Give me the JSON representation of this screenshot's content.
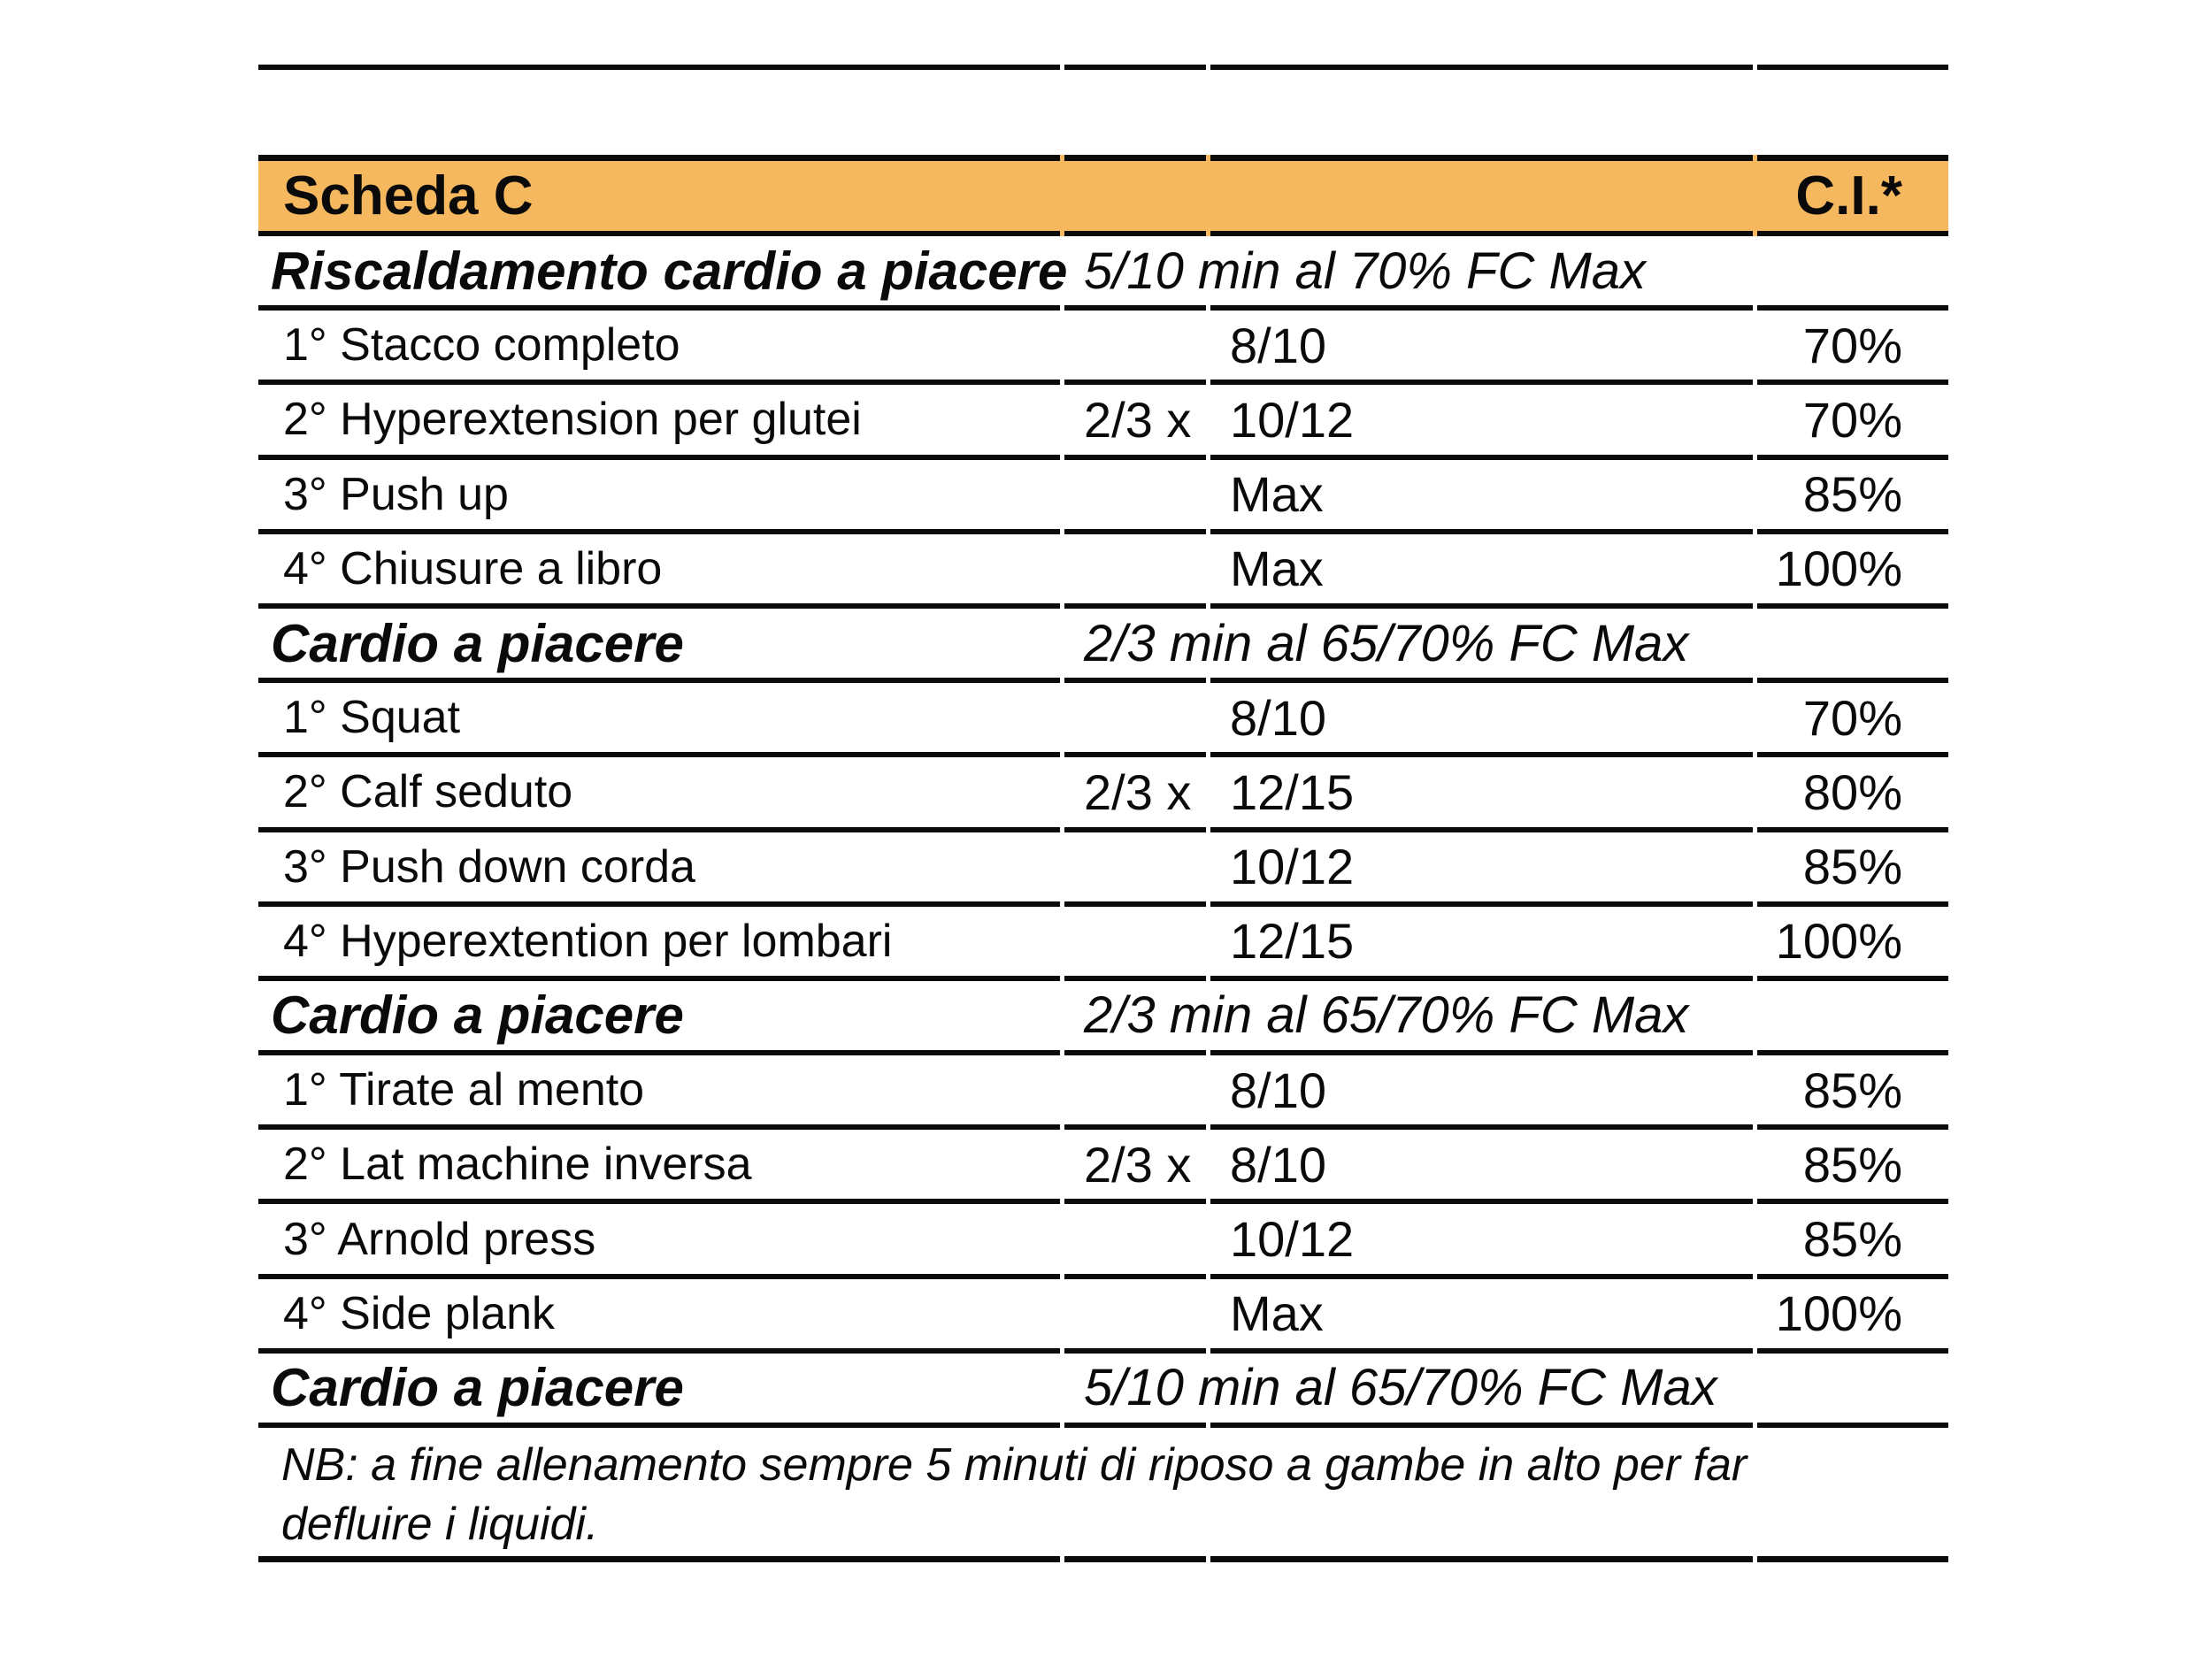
{
  "colors": {
    "page_bg": "#ffffff",
    "header_bg": "#f5b85e",
    "rule_color": "#0b0b0b",
    "text_color": "#0a0a0a"
  },
  "table": {
    "title": "Scheda C",
    "ci_header": "C.I.*",
    "rows": [
      {
        "type": "section",
        "name": "Riscaldamento cardio a piacere",
        "detail": "5/10 min al 70% FC Max"
      },
      {
        "type": "exercise",
        "name": "1° Stacco completo",
        "mult": "",
        "reps": "8/10",
        "ci": "70%"
      },
      {
        "type": "exercise",
        "name": "2° Hyperextension per glutei",
        "mult": "2/3 x",
        "reps": "10/12",
        "ci": "70%"
      },
      {
        "type": "exercise",
        "name": "3° Push up",
        "mult": "",
        "reps": "Max",
        "ci": "85%"
      },
      {
        "type": "exercise",
        "name": "4° Chiusure a libro",
        "mult": "",
        "reps": "Max",
        "ci": "100%"
      },
      {
        "type": "section",
        "name": "Cardio a piacere",
        "detail": "2/3 min al 65/70% FC Max"
      },
      {
        "type": "exercise",
        "name": "1° Squat",
        "mult": "",
        "reps": "8/10",
        "ci": "70%"
      },
      {
        "type": "exercise",
        "name": "2° Calf seduto",
        "mult": "2/3 x",
        "reps": "12/15",
        "ci": "80%"
      },
      {
        "type": "exercise",
        "name": "3° Push down corda",
        "mult": "",
        "reps": "10/12",
        "ci": "85%"
      },
      {
        "type": "exercise",
        "name": "4° Hyperextention per lombari",
        "mult": "",
        "reps": "12/15",
        "ci": "100%"
      },
      {
        "type": "section",
        "name": "Cardio a piacere",
        "detail": "2/3 min al 65/70% FC Max"
      },
      {
        "type": "exercise",
        "name": "1° Tirate al mento",
        "mult": "",
        "reps": "8/10",
        "ci": "85%"
      },
      {
        "type": "exercise",
        "name": "2° Lat machine inversa",
        "mult": "2/3 x",
        "reps": "8/10",
        "ci": "85%"
      },
      {
        "type": "exercise",
        "name": "3° Arnold press",
        "mult": "",
        "reps": "10/12",
        "ci": "85%"
      },
      {
        "type": "exercise",
        "name": "4° Side plank",
        "mult": "",
        "reps": "Max",
        "ci": "100%"
      },
      {
        "type": "section",
        "name": "Cardio a piacere",
        "detail": "5/10 min al 65/70% FC Max"
      },
      {
        "type": "note",
        "lines": [
          "NB: a fine allenamento sempre 5 minuti di riposo a gambe in alto per far",
          "defluire i liquidi."
        ]
      }
    ]
  }
}
